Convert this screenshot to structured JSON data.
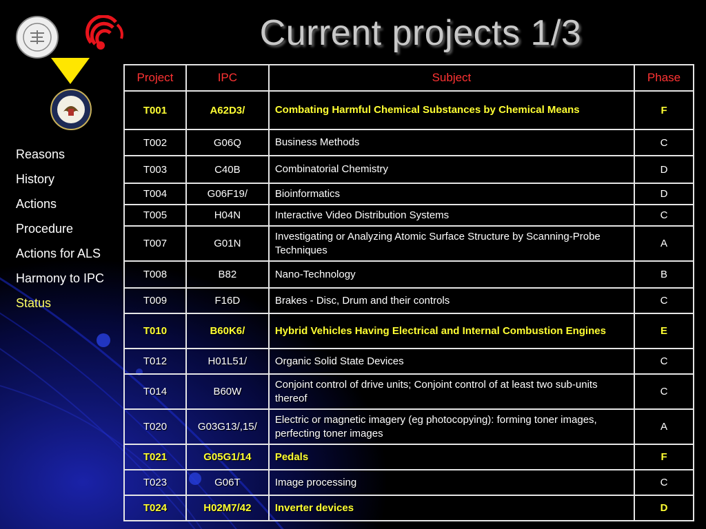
{
  "title": "Current projects 1/3",
  "nav": {
    "items": [
      {
        "label": "Reasons",
        "active": false
      },
      {
        "label": "History",
        "active": false
      },
      {
        "label": "Actions",
        "active": false
      },
      {
        "label": "Procedure",
        "active": false
      },
      {
        "label": "Actions for ALS",
        "active": false
      },
      {
        "label": "Harmony to IPC",
        "active": false
      },
      {
        "label": "Status",
        "active": true
      }
    ]
  },
  "logos": {
    "jpo_seal_text": "JAPAN PATENT OFFICE",
    "colors": {
      "triangle": "#ffe600",
      "epo": "#e8141c",
      "highlight_text": "#ffff33",
      "header_text": "#ff3333"
    }
  },
  "table": {
    "headers": [
      "Project",
      "IPC",
      "Subject",
      "Phase"
    ],
    "rows": [
      {
        "project": "T001",
        "ipc": "A62D3/",
        "subject": "Combating Harmful Chemical Substances by Chemical Means",
        "phase": "F",
        "highlight": true
      },
      {
        "project": "T002",
        "ipc": "G06Q",
        "subject": "Business Methods",
        "phase": "C",
        "highlight": false
      },
      {
        "project": "T003",
        "ipc": "C40B",
        "subject": "Combinatorial Chemistry",
        "phase": "D",
        "highlight": false
      },
      {
        "project": "T004",
        "ipc": "G06F19/",
        "subject": "Bioinformatics",
        "phase": "D",
        "highlight": false
      },
      {
        "project": "T005",
        "ipc": "H04N",
        "subject": "Interactive Video Distribution Systems",
        "phase": "C",
        "highlight": false
      },
      {
        "project": "T007",
        "ipc": "G01N",
        "subject": "Investigating or Analyzing Atomic Surface Structure by Scanning-Probe Techniques",
        "phase": "A",
        "highlight": false
      },
      {
        "project": "T008",
        "ipc": "B82",
        "subject": "Nano-Technology",
        "phase": "B",
        "highlight": false
      },
      {
        "project": "T009",
        "ipc": "F16D",
        "subject": "Brakes - Disc, Drum and their controls",
        "phase": "C",
        "highlight": false
      },
      {
        "project": "T010",
        "ipc": "B60K6/",
        "subject": "Hybrid Vehicles Having Electrical and Internal Combustion Engines",
        "phase": "E",
        "highlight": true
      },
      {
        "project": "T012",
        "ipc": "H01L51/",
        "subject": "Organic Solid State Devices",
        "phase": "C",
        "highlight": false
      },
      {
        "project": "T014",
        "ipc": "B60W",
        "subject": "Conjoint control of drive units; Conjoint control of at least two sub-units thereof",
        "phase": "C",
        "highlight": false
      },
      {
        "project": "T020",
        "ipc": "G03G13/,15/",
        "subject": "Electric or magnetic imagery (eg photocopying): forming toner images, perfecting toner images",
        "phase": "A",
        "highlight": false
      },
      {
        "project": "T021",
        "ipc": "G05G1/14",
        "subject": "Pedals",
        "phase": "F",
        "highlight": true
      },
      {
        "project": "T023",
        "ipc": "G06T",
        "subject": "Image processing",
        "phase": "C",
        "highlight": false
      },
      {
        "project": "T024",
        "ipc": "H02M7/42",
        "subject": "Inverter devices",
        "phase": "D",
        "highlight": true
      }
    ]
  }
}
